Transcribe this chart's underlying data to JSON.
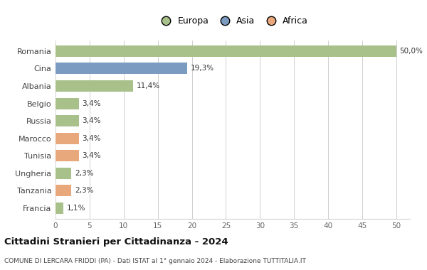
{
  "categories": [
    "Romania",
    "Cina",
    "Albania",
    "Belgio",
    "Russia",
    "Marocco",
    "Tunisia",
    "Ungheria",
    "Tanzania",
    "Francia"
  ],
  "values": [
    50.0,
    19.3,
    11.4,
    3.4,
    3.4,
    3.4,
    3.4,
    2.3,
    2.3,
    1.1
  ],
  "labels": [
    "50,0%",
    "19,3%",
    "11,4%",
    "3,4%",
    "3,4%",
    "3,4%",
    "3,4%",
    "2,3%",
    "2,3%",
    "1,1%"
  ],
  "colors": [
    "#a8c08a",
    "#7b9cc0",
    "#a8c08a",
    "#a8c08a",
    "#a8c08a",
    "#e8a87c",
    "#e8a87c",
    "#a8c08a",
    "#e8a87c",
    "#a8c08a"
  ],
  "legend_labels": [
    "Europa",
    "Asia",
    "Africa"
  ],
  "legend_colors": [
    "#a8c08a",
    "#7b9cc0",
    "#e8a87c"
  ],
  "title": "Cittadini Stranieri per Cittadinanza - 2024",
  "subtitle": "COMUNE DI LERCARA FRIDDI (PA) - Dati ISTAT al 1° gennaio 2024 - Elaborazione TUTTITALIA.IT",
  "xlim": [
    0,
    52
  ],
  "xticks": [
    0,
    5,
    10,
    15,
    20,
    25,
    30,
    35,
    40,
    45,
    50
  ],
  "background_color": "#ffffff",
  "grid_color": "#d0d0d0"
}
